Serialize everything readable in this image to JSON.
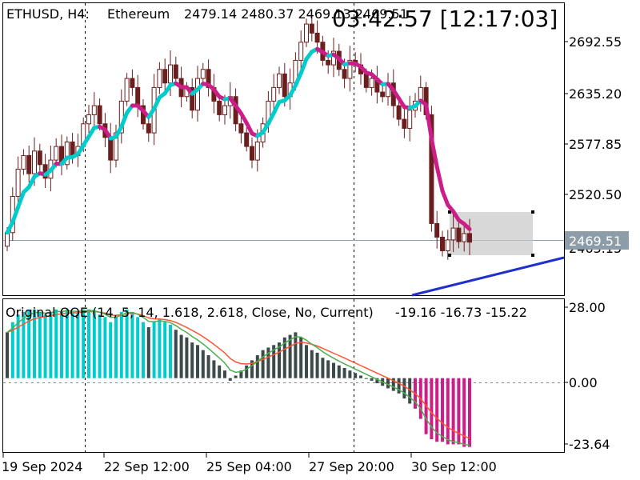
{
  "header": {
    "symbol": "ETHUSD, H4:",
    "name": "Ethereum",
    "ohlc": "2479.14 2480.37 2469.13 2469.51",
    "timer": "03:42:57 [12:17:03]"
  },
  "price_axis": {
    "ticks": [
      "2692.55",
      "2635.20",
      "2577.85",
      "2520.50",
      "2463.15"
    ],
    "current_price": "2469.51",
    "range": [
      2411.0,
      2733.0
    ]
  },
  "indicator": {
    "title": "Original QQE (14, 5, 14, 1.618, 2.618, Close, No, Current)",
    "values": "-19.16 -16.73 -15.22",
    "ticks": [
      "28.00",
      "0.00",
      "-23.64"
    ],
    "range": [
      -29.0,
      31.0
    ]
  },
  "time_axis": {
    "labels": [
      "19 Sep 2024",
      "22 Sep 12:00",
      "25 Sep 04:00",
      "27 Sep 20:00",
      "30 Sep 12:00"
    ]
  },
  "colors": {
    "bull": "#00cccc",
    "bear": "#cc1e88",
    "candle": "#6b1e1e",
    "hist_dark": "#3c4a4a",
    "trend": "#1f2fcc",
    "qqe_fast": "#4caf50",
    "qqe_slow": "#ff5533"
  },
  "chart_data": {
    "type": "candlestick",
    "closes": [
      2480,
      2520,
      2550,
      2565,
      2545,
      2570,
      2555,
      2540,
      2560,
      2575,
      2555,
      2580,
      2565,
      2575,
      2600,
      2610,
      2620,
      2600,
      2585,
      2560,
      2590,
      2625,
      2650,
      2640,
      2620,
      2600,
      2590,
      2640,
      2660,
      2645,
      2665,
      2650,
      2630,
      2640,
      2615,
      2650,
      2660,
      2640,
      2625,
      2610,
      2620,
      2630,
      2600,
      2590,
      2575,
      2560,
      2580,
      2600,
      2625,
      2640,
      2655,
      2630,
      2645,
      2670,
      2690,
      2710,
      2700,
      2690,
      2670,
      2665,
      2680,
      2660,
      2650,
      2670,
      2665,
      2655,
      2640,
      2650,
      2635,
      2630,
      2645,
      2620,
      2605,
      2595,
      2615,
      2625,
      2640,
      2610,
      2490,
      2475,
      2460,
      2472,
      2485,
      2470,
      2479,
      2469.51
    ],
    "qqe_histogram": [
      18,
      22,
      25,
      26,
      27,
      27,
      26,
      25,
      26,
      27,
      26,
      27,
      26,
      26,
      27,
      27,
      26,
      25,
      24,
      22,
      24,
      26,
      27,
      26,
      24,
      22,
      20,
      22,
      23,
      22,
      21,
      19,
      17,
      16,
      14,
      13,
      11,
      9,
      7,
      5,
      3,
      -1,
      1,
      3,
      5,
      7,
      9,
      11,
      12,
      13,
      14,
      16,
      17,
      18,
      16,
      13,
      11,
      10,
      8,
      7,
      6,
      5,
      4,
      3,
      2,
      1,
      0,
      -1,
      -2,
      -3,
      -4,
      -5,
      -6,
      -8,
      -10,
      -12,
      -16,
      -22,
      -24,
      -25,
      -25,
      -26,
      -26,
      -26,
      -27,
      -27
    ]
  }
}
